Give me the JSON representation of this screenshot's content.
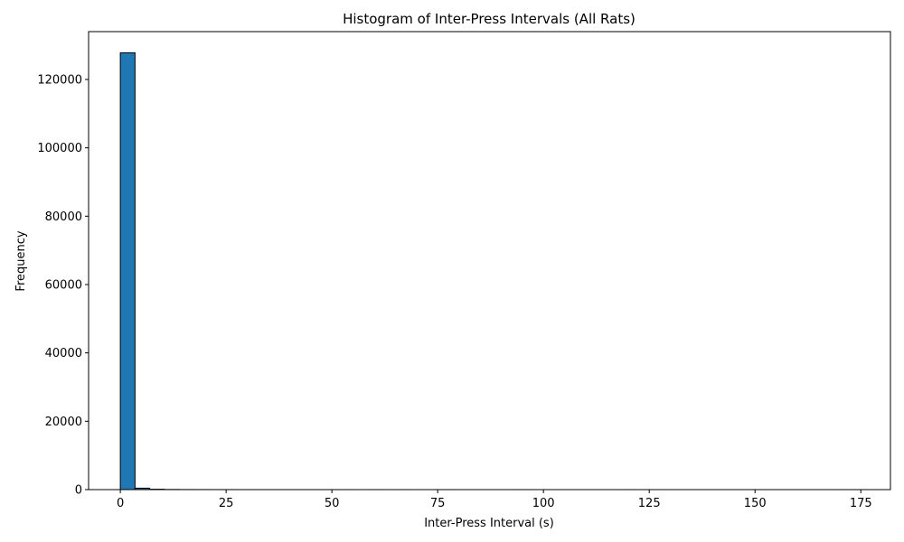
{
  "chart_data": {
    "type": "bar",
    "title": "Histogram of Inter-Press Intervals (All Rats)",
    "xlabel": "Inter-Press Interval (s)",
    "ylabel": "Frequency",
    "xlim": [
      -7.5,
      182
    ],
    "ylim": [
      0,
      134000
    ],
    "xticks": [
      0,
      25,
      50,
      75,
      100,
      125,
      150,
      175
    ],
    "yticks": [
      0,
      20000,
      40000,
      60000,
      80000,
      100000,
      120000
    ],
    "bar_color": "#1f77b4",
    "edge_color": "#000000",
    "grid": false,
    "bin_width": 3.47,
    "bins": [
      {
        "x0": 0.0,
        "count": 127800
      },
      {
        "x0": 3.47,
        "count": 420
      },
      {
        "x0": 6.94,
        "count": 110
      },
      {
        "x0": 10.41,
        "count": 40
      },
      {
        "x0": 13.88,
        "count": 20
      },
      {
        "x0": 17.35,
        "count": 12
      },
      {
        "x0": 20.82,
        "count": 8
      },
      {
        "x0": 24.29,
        "count": 5
      },
      {
        "x0": 27.76,
        "count": 4
      },
      {
        "x0": 31.23,
        "count": 3
      },
      {
        "x0": 34.7,
        "count": 2
      },
      {
        "x0": 38.17,
        "count": 2
      },
      {
        "x0": 41.64,
        "count": 1
      },
      {
        "x0": 45.11,
        "count": 1
      },
      {
        "x0": 48.58,
        "count": 1
      },
      {
        "x0": 52.05,
        "count": 1
      },
      {
        "x0": 55.52,
        "count": 0
      },
      {
        "x0": 58.99,
        "count": 1
      },
      {
        "x0": 62.46,
        "count": 0
      },
      {
        "x0": 65.93,
        "count": 1
      },
      {
        "x0": 69.4,
        "count": 0
      },
      {
        "x0": 72.87,
        "count": 0
      },
      {
        "x0": 76.34,
        "count": 1
      },
      {
        "x0": 79.81,
        "count": 0
      },
      {
        "x0": 83.28,
        "count": 0
      },
      {
        "x0": 86.75,
        "count": 0
      },
      {
        "x0": 90.22,
        "count": 0
      },
      {
        "x0": 93.69,
        "count": 1
      },
      {
        "x0": 97.16,
        "count": 0
      },
      {
        "x0": 100.63,
        "count": 0
      },
      {
        "x0": 104.1,
        "count": 0
      },
      {
        "x0": 107.57,
        "count": 0
      },
      {
        "x0": 111.04,
        "count": 0
      },
      {
        "x0": 114.51,
        "count": 0
      },
      {
        "x0": 117.98,
        "count": 1
      },
      {
        "x0": 121.45,
        "count": 0
      },
      {
        "x0": 124.92,
        "count": 0
      },
      {
        "x0": 128.39,
        "count": 0
      },
      {
        "x0": 131.86,
        "count": 0
      },
      {
        "x0": 135.33,
        "count": 0
      },
      {
        "x0": 138.8,
        "count": 0
      },
      {
        "x0": 142.27,
        "count": 0
      },
      {
        "x0": 145.74,
        "count": 0
      },
      {
        "x0": 149.21,
        "count": 0
      },
      {
        "x0": 152.68,
        "count": 0
      },
      {
        "x0": 156.15,
        "count": 0
      },
      {
        "x0": 159.62,
        "count": 0
      },
      {
        "x0": 163.09,
        "count": 0
      },
      {
        "x0": 166.56,
        "count": 0
      },
      {
        "x0": 170.03,
        "count": 1
      }
    ]
  }
}
